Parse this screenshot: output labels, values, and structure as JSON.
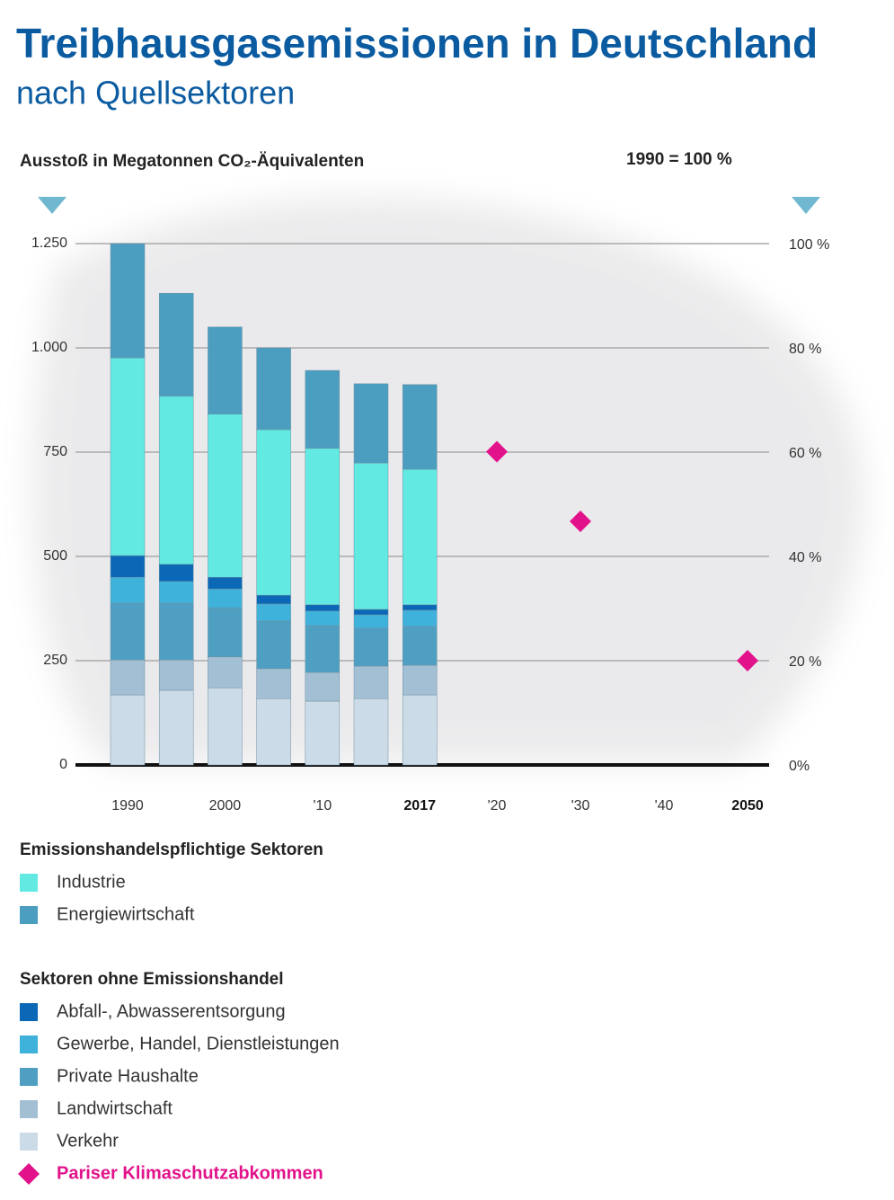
{
  "chart_data": {
    "type": "bar",
    "stacked": true,
    "title": "Treibhausgasemissionen in Deutschland",
    "subtitle": "nach Quellsektoren",
    "y_label": "Ausstoß in Megatonnen CO₂-Äquivalenten",
    "y2_label": "1990 = 100 %",
    "categories": [
      "1990",
      null,
      "2000",
      null,
      "'10",
      null,
      "2017",
      "'20",
      "'30",
      "'40",
      "2050"
    ],
    "bold_ticks": [
      6,
      10
    ],
    "ylim": [
      0,
      1250
    ],
    "yticks": [
      0,
      250,
      500,
      750,
      {
        "value": 1000,
        "label": "1.000"
      },
      {
        "value": 1250,
        "label": "1.250"
      }
    ],
    "y2lim": [
      0,
      100
    ],
    "y2ticks": [
      {
        "value": 0,
        "label": "0%"
      },
      {
        "value": 20,
        "label": "20 %"
      },
      {
        "value": 40,
        "label": "40 %"
      },
      {
        "value": 60,
        "label": "60 %"
      },
      {
        "value": 80,
        "label": "80 %"
      },
      {
        "value": 100,
        "label": "100 %"
      }
    ],
    "grid": true,
    "series": [
      {
        "name": "Verkehr",
        "color": "#cbdbe7",
        "values": [
          168,
          179,
          185,
          159,
          153,
          159,
          168,
          null,
          null,
          null,
          null
        ]
      },
      {
        "name": "Landwirtschaft",
        "color": "#a3bfd3",
        "values": [
          84,
          73,
          74,
          72,
          69,
          78,
          71,
          null,
          null,
          null,
          null
        ]
      },
      {
        "name": "Private Haushalte",
        "color": "#4f9fc2",
        "values": [
          136,
          136,
          118,
          114,
          112,
          91,
          93,
          null,
          null,
          null,
          null
        ]
      },
      {
        "name": "Gewerbe, Handel, Dienstleistungen",
        "color": "#3fb2dc",
        "values": [
          62,
          52,
          45,
          41,
          35,
          32,
          39,
          null,
          null,
          null,
          null
        ]
      },
      {
        "name": "Abfall-, Abwasserentsorgung",
        "color": "#0b68b6",
        "values": [
          52,
          41,
          28,
          21,
          15,
          13,
          13,
          null,
          null,
          null,
          null
        ]
      },
      {
        "name": "Industrie",
        "color": "#62eae2",
        "values": [
          474,
          403,
          391,
          397,
          375,
          351,
          325,
          null,
          null,
          null,
          null
        ]
      },
      {
        "name": "Energiewirtschaft",
        "color": "#4b9ec0",
        "values": [
          274,
          247,
          209,
          196,
          187,
          190,
          203,
          null,
          null,
          null,
          null
        ]
      },
      {
        "name": "Pariser Klimaschutzabkommen",
        "color": "#e2128a",
        "marker": "diamond",
        "values": [
          null,
          null,
          null,
          null,
          null,
          null,
          null,
          751,
          584,
          null,
          250
        ]
      }
    ],
    "legend_groups": [
      {
        "title": "Emissionshandelspflichtige Sektoren",
        "series": [
          5,
          6
        ]
      },
      {
        "title": "Sektoren ohne Emissionshandel",
        "series": [
          4,
          3,
          2,
          1,
          0,
          7
        ]
      }
    ]
  }
}
